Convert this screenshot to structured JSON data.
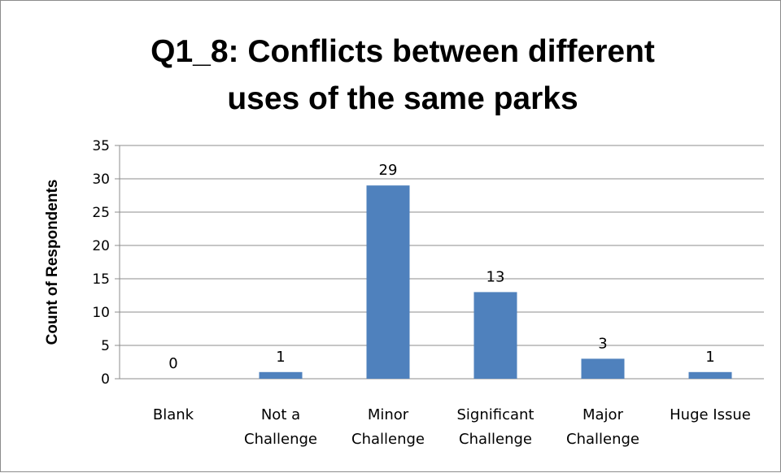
{
  "chart_data": {
    "type": "bar",
    "title_lines": [
      "Q1_8: Conflicts between different",
      "uses of the same parks"
    ],
    "xlabel": "",
    "ylabel": "Count of Respondents",
    "categories": [
      [
        "Blank"
      ],
      [
        "Not a",
        "Challenge"
      ],
      [
        "Minor",
        "Challenge"
      ],
      [
        "Significant",
        "Challenge"
      ],
      [
        "Major",
        "Challenge"
      ],
      [
        "Huge Issue"
      ]
    ],
    "values": [
      0,
      1,
      29,
      13,
      3,
      1
    ],
    "data_labels": [
      "0",
      "1",
      "29",
      "13",
      "3",
      "1"
    ],
    "ylim": [
      0,
      35
    ],
    "yticks": [
      "0",
      "5",
      "10",
      "15",
      "20",
      "25",
      "30",
      "35"
    ],
    "grid": true,
    "legend": "none",
    "bar_color": "#4f81bd"
  }
}
